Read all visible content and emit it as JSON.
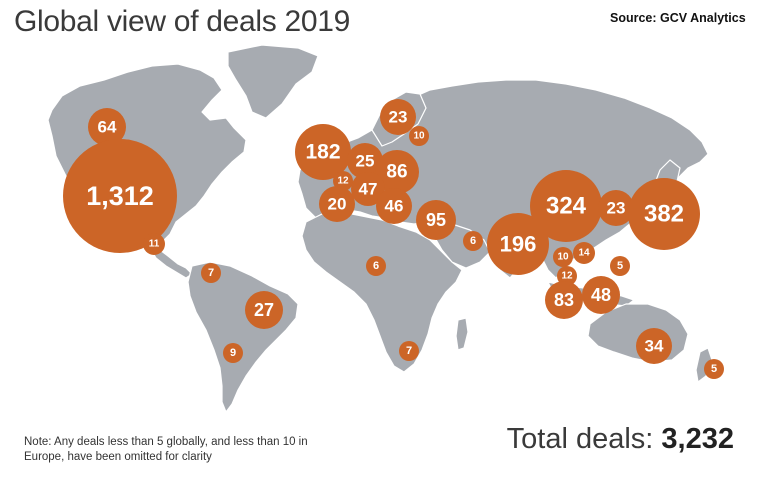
{
  "header": {
    "title": "Global view of deals 2019",
    "source": "Source: GCV Analytics"
  },
  "colors": {
    "bubble": "#cc6527",
    "land": "#a7abb1",
    "background": "#ffffff"
  },
  "deals": [
    {
      "region": "Canada",
      "count": 64,
      "label": "64"
    },
    {
      "region": "United States",
      "count": 1312,
      "label": "1,312"
    },
    {
      "region": "Mexico / Central America",
      "count": 11,
      "label": "11"
    },
    {
      "region": "Colombia",
      "count": 7,
      "label": "7"
    },
    {
      "region": "Brazil",
      "count": 27,
      "label": "27"
    },
    {
      "region": "Argentina",
      "count": 9,
      "label": "9"
    },
    {
      "region": "United Kingdom",
      "count": 182,
      "label": "182"
    },
    {
      "region": "Scandinavia",
      "count": 23,
      "label": "23"
    },
    {
      "region": "Finland / Baltics",
      "count": 10,
      "label": "10"
    },
    {
      "region": "Netherlands",
      "count": 25,
      "label": "25"
    },
    {
      "region": "Belgium",
      "count": 12,
      "label": "12"
    },
    {
      "region": "Germany",
      "count": 86,
      "label": "86"
    },
    {
      "region": "France",
      "count": 47,
      "label": "47"
    },
    {
      "region": "Spain",
      "count": 20,
      "label": "20"
    },
    {
      "region": "Switzerland / Italy",
      "count": 46,
      "label": "46"
    },
    {
      "region": "Israel",
      "count": 95,
      "label": "95"
    },
    {
      "region": "United Arab Emirates",
      "count": 6,
      "label": "6"
    },
    {
      "region": "Nigeria",
      "count": 6,
      "label": "6"
    },
    {
      "region": "South Africa",
      "count": 7,
      "label": "7"
    },
    {
      "region": "India",
      "count": 196,
      "label": "196"
    },
    {
      "region": "China",
      "count": 324,
      "label": "324"
    },
    {
      "region": "South Korea",
      "count": 23,
      "label": "23"
    },
    {
      "region": "Japan",
      "count": 382,
      "label": "382"
    },
    {
      "region": "Thailand / Vietnam",
      "count": 10,
      "label": "10"
    },
    {
      "region": "Hong Kong",
      "count": 14,
      "label": "14"
    },
    {
      "region": "Malaysia",
      "count": 12,
      "label": "12"
    },
    {
      "region": "Philippines",
      "count": 5,
      "label": "5"
    },
    {
      "region": "Singapore",
      "count": 83,
      "label": "83"
    },
    {
      "region": "Indonesia",
      "count": 48,
      "label": "48"
    },
    {
      "region": "Australia",
      "count": 34,
      "label": "34"
    },
    {
      "region": "New Zealand",
      "count": 5,
      "label": "5"
    }
  ],
  "footer": {
    "note": "Note: Any deals less than 5 globally, and less than 10 in Europe, have been omitted for clarity",
    "total_label": "Total deals:",
    "total_value": "3,232"
  }
}
